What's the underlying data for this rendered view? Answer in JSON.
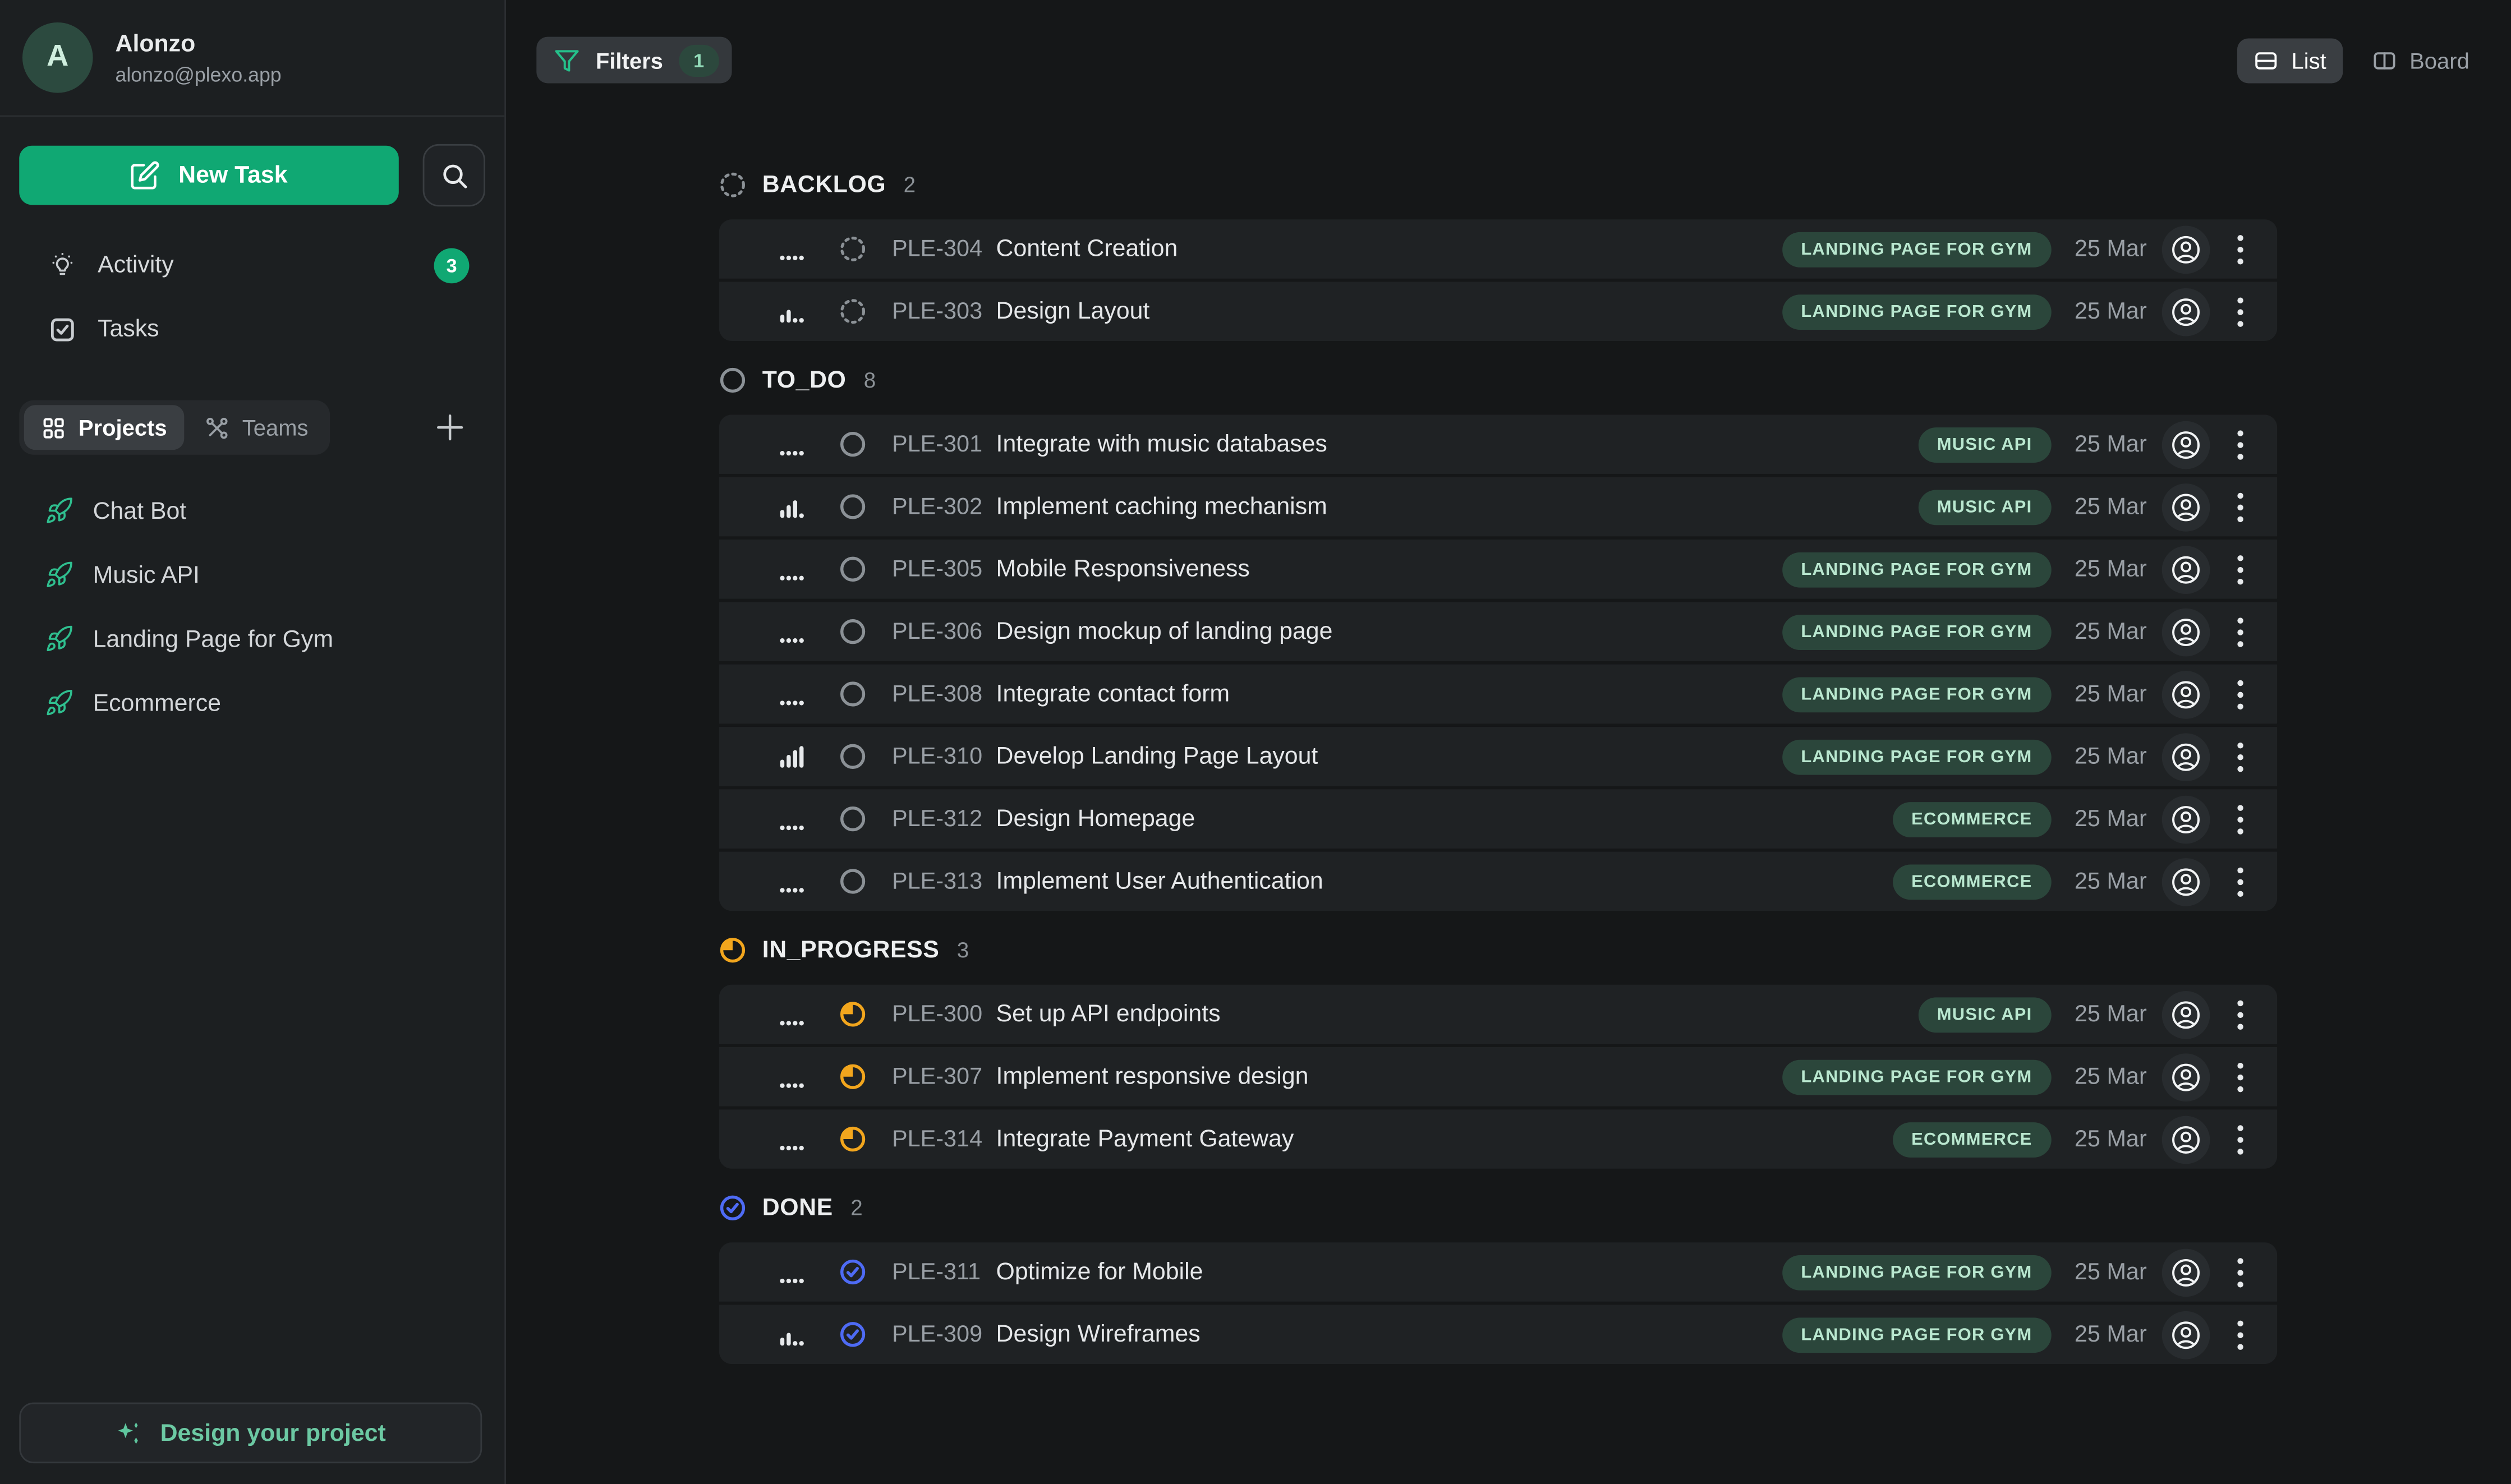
{
  "colors": {
    "accent_green": "#10a873",
    "icon_green": "#25c08a",
    "rocket_green": "#2fbf8f",
    "mint_text": "#b9e7cf",
    "badge_bg": "#2b463b",
    "amber_in_progress": "#f2a61d",
    "blue_done": "#4e6bf5",
    "gray_status": "#8b9196",
    "icon_light": "#e7eaec"
  },
  "sidebar": {
    "user": {
      "initial": "A",
      "name": "Alonzo",
      "email": "alonzo@plexo.app"
    },
    "new_task_label": "New Task",
    "nav": [
      {
        "label": "Activity",
        "badge": "3"
      },
      {
        "label": "Tasks"
      }
    ],
    "tabs": {
      "projects": "Projects",
      "teams": "Teams"
    },
    "projects": [
      "Chat Bot",
      "Music API",
      "Landing Page for Gym",
      "Ecommerce"
    ],
    "footer_button": "Design your project"
  },
  "toolbar": {
    "filters_label": "Filters",
    "filters_count": "1",
    "view_list": "List",
    "view_board": "Board"
  },
  "groups": [
    {
      "id": "backlog",
      "label": "BACKLOG",
      "count": "2",
      "tasks": [
        {
          "id": "PLE-304",
          "title": "Content Creation",
          "project": "LANDING PAGE FOR GYM",
          "date": "25 Mar",
          "priority": "none"
        },
        {
          "id": "PLE-303",
          "title": "Design Layout",
          "project": "LANDING PAGE FOR GYM",
          "date": "25 Mar",
          "priority": "medium"
        }
      ]
    },
    {
      "id": "todo",
      "label": "TO_DO",
      "count": "8",
      "tasks": [
        {
          "id": "PLE-301",
          "title": "Integrate with music databases",
          "project": "MUSIC API",
          "date": "25 Mar",
          "priority": "none"
        },
        {
          "id": "PLE-302",
          "title": "Implement caching mechanism",
          "project": "MUSIC API",
          "date": "25 Mar",
          "priority": "high"
        },
        {
          "id": "PLE-305",
          "title": "Mobile Responsiveness",
          "project": "LANDING PAGE FOR GYM",
          "date": "25 Mar",
          "priority": "none"
        },
        {
          "id": "PLE-306",
          "title": "Design mockup of landing page",
          "project": "LANDING PAGE FOR GYM",
          "date": "25 Mar",
          "priority": "none"
        },
        {
          "id": "PLE-308",
          "title": "Integrate contact form",
          "project": "LANDING PAGE FOR GYM",
          "date": "25 Mar",
          "priority": "none"
        },
        {
          "id": "PLE-310",
          "title": "Develop Landing Page Layout",
          "project": "LANDING PAGE FOR GYM",
          "date": "25 Mar",
          "priority": "urgent"
        },
        {
          "id": "PLE-312",
          "title": "Design Homepage",
          "project": "ECOMMERCE",
          "date": "25 Mar",
          "priority": "none"
        },
        {
          "id": "PLE-313",
          "title": "Implement User Authentication",
          "project": "ECOMMERCE",
          "date": "25 Mar",
          "priority": "none"
        }
      ]
    },
    {
      "id": "in_progress",
      "label": "IN_PROGRESS",
      "count": "3",
      "tasks": [
        {
          "id": "PLE-300",
          "title": "Set up API endpoints",
          "project": "MUSIC API",
          "date": "25 Mar",
          "priority": "none"
        },
        {
          "id": "PLE-307",
          "title": "Implement responsive design",
          "project": "LANDING PAGE FOR GYM",
          "date": "25 Mar",
          "priority": "none"
        },
        {
          "id": "PLE-314",
          "title": "Integrate Payment Gateway",
          "project": "ECOMMERCE",
          "date": "25 Mar",
          "priority": "none"
        }
      ]
    },
    {
      "id": "done",
      "label": "DONE",
      "count": "2",
      "tasks": [
        {
          "id": "PLE-311",
          "title": "Optimize for Mobile",
          "project": "LANDING PAGE FOR GYM",
          "date": "25 Mar",
          "priority": "none"
        },
        {
          "id": "PLE-309",
          "title": "Design Wireframes",
          "project": "LANDING PAGE FOR GYM",
          "date": "25 Mar",
          "priority": "medium"
        }
      ]
    }
  ]
}
